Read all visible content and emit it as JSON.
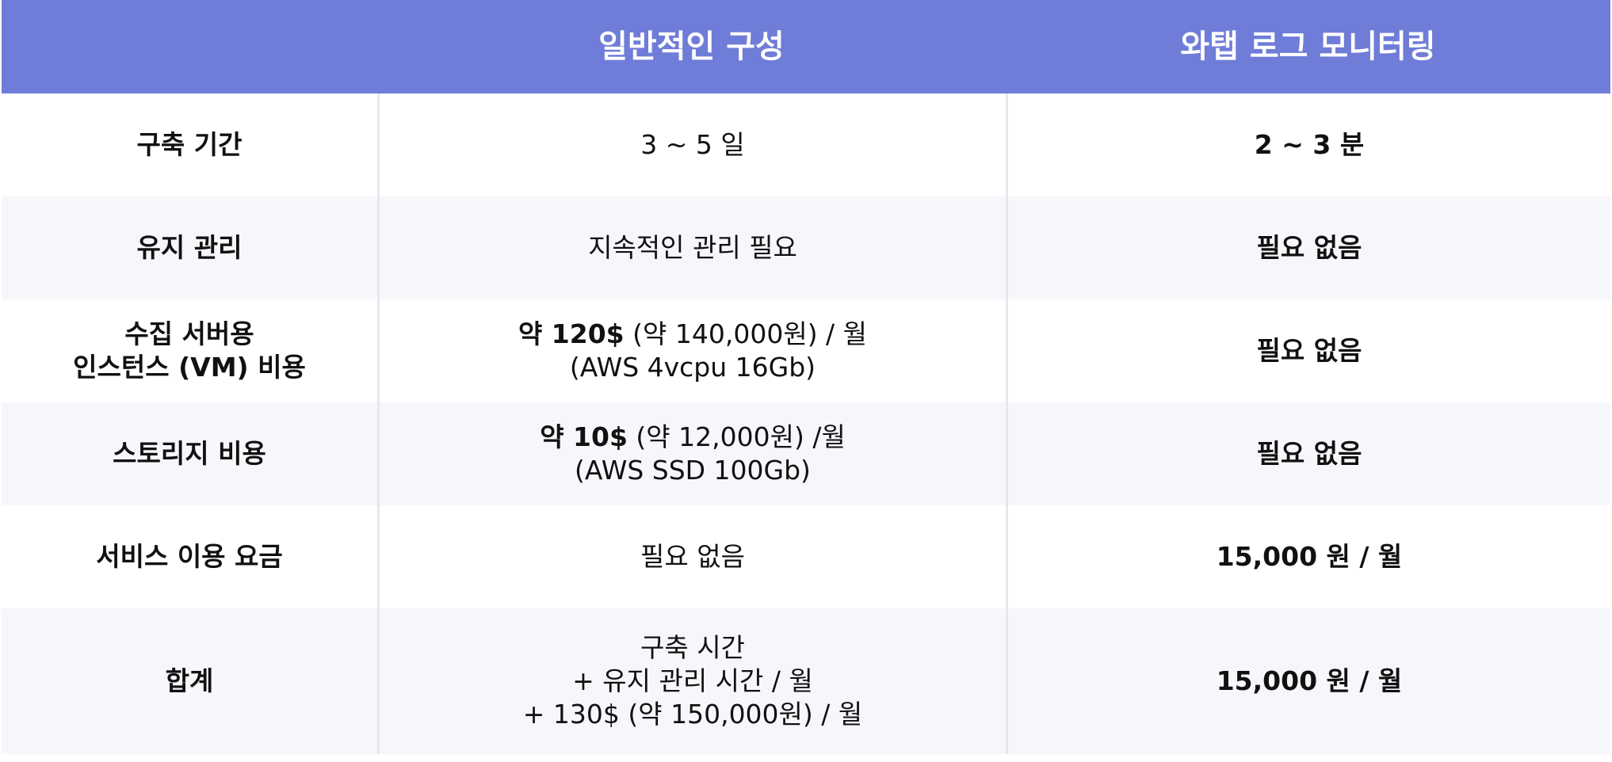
{
  "header": {
    "col1": "",
    "col2": "일반적인 구성",
    "col3": "와탭 로그 모니터링"
  },
  "rows": [
    {
      "label": "구축 기간",
      "general": "3 ~ 5 일",
      "whatap": "2 ~ 3 분"
    },
    {
      "label": "유지 관리",
      "general": "지속적인 관리 필요",
      "whatap": "필요 없음"
    },
    {
      "label": "수집 서버용\n인스턴스 (VM) 비용",
      "general_strong": "약 120$",
      "general_rest": " (약 140,000원) / 월",
      "general_line2": "(AWS 4vcpu 16Gb)",
      "whatap": "필요 없음"
    },
    {
      "label": "스토리지 비용",
      "general_strong": "약 10$",
      "general_rest": " (약 12,000원) /월",
      "general_line2": "(AWS SSD 100Gb)",
      "whatap": "필요 없음"
    },
    {
      "label": "서비스 이용 요금",
      "general": "필요 없음",
      "whatap": "15,000 원 / 월"
    },
    {
      "label": "합계",
      "general": "구축 시간\n+ 유지 관리 시간 / 월\n+ 130$ (약 150,000원) / 월",
      "whatap": "15,000 원 / 월"
    }
  ],
  "colors": {
    "header_bg": "#6f7dd8",
    "alt_row_bg": "#f6f7fb",
    "divider": "#e6e8ee"
  }
}
